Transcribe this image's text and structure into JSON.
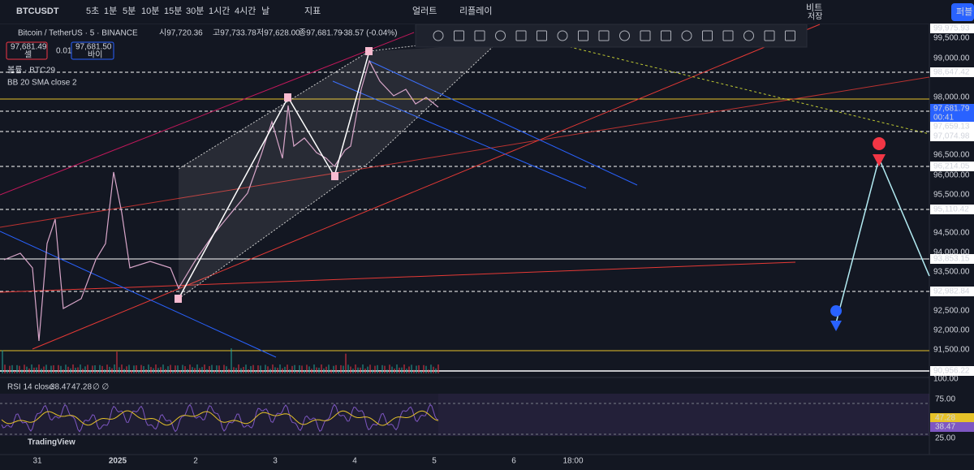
{
  "toolbar": {
    "symbol": "BTCUSDT",
    "intervals": [
      "5초",
      "1분",
      "5분",
      "10분",
      "15분",
      "30분",
      "1시간",
      "4시간",
      "날"
    ],
    "indicators": "지표",
    "alert": "얼러트",
    "replay": "리플레이",
    "layout_name": "비트",
    "layout_sub": "저장",
    "publish": "퍼블"
  },
  "legend": {
    "title": "Bitcoin / TetherUS · 5 · BINANCE",
    "open": "시97,720.36",
    "high": "고97,733.78",
    "low": "저97,628.00",
    "close": "종97,681.79",
    "change": "-38.57 (-0.04%)",
    "sell_price": "97,681.49",
    "sell": "셀",
    "spread": "0.01",
    "buy_price": "97,681.50",
    "buy": "바이",
    "volume": "볼륨 · BTC",
    "volume_value": "29",
    "bb": "BB 20 SMA close 2"
  },
  "price_axis": [
    "99,975.93",
    "99,500.00",
    "99,000.00",
    "98,647.42",
    "98,000.00",
    "97,681.79",
    "00:41",
    "97,659.13",
    "97,074.98",
    "96,500.00",
    "96,214.05",
    "96,000.00",
    "95,500.00",
    "95,110.42",
    "94,500.00",
    "94,000.00",
    "93,853.15",
    "93,500.00",
    "92,982.84",
    "92,500.00",
    "92,000.00",
    "91,500.00",
    "90,956.22",
    "100.00"
  ],
  "rsi": {
    "label": "RSI 14 close",
    "value1": "38.47",
    "value2": "47.28",
    "extra": "∅ ∅",
    "axis": [
      "75.00",
      "47.28",
      "38.47",
      "25.00"
    ]
  },
  "time_axis": [
    "31",
    "2025",
    "2",
    "3",
    "4",
    "5",
    "6",
    "18:00"
  ],
  "watermark": "TradingView"
}
